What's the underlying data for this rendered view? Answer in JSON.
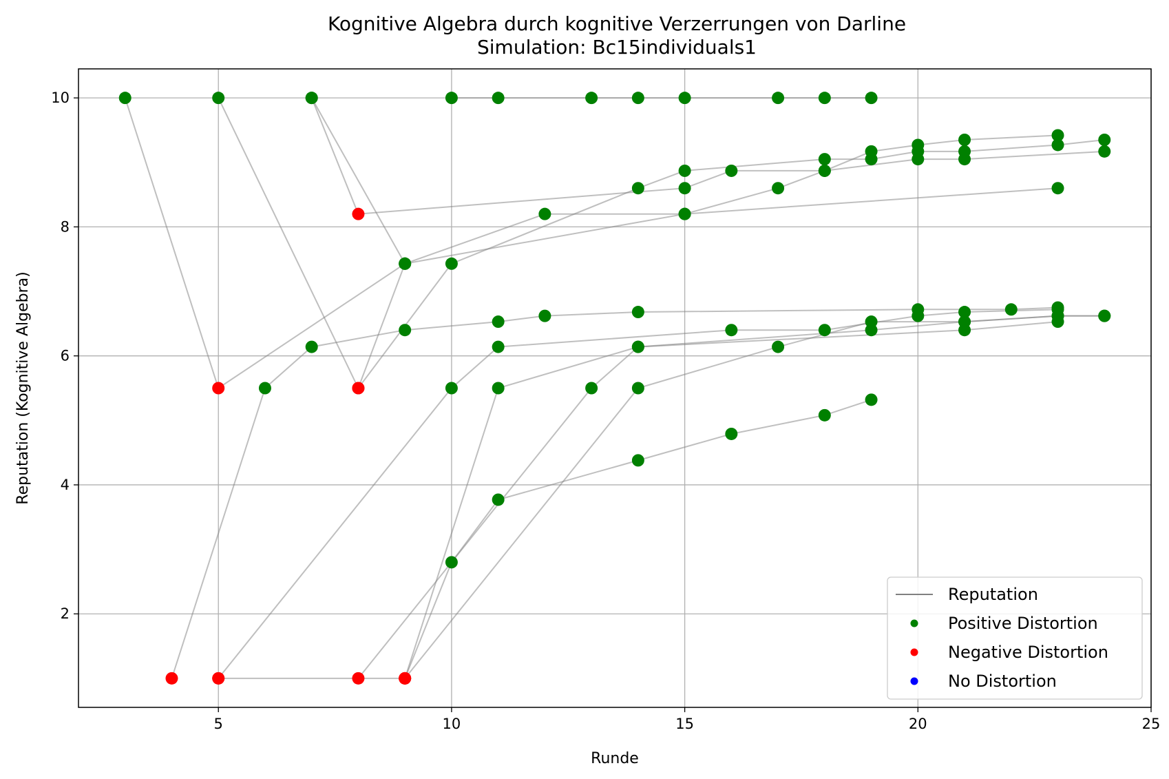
{
  "chart_data": {
    "type": "scatter",
    "title": "Kognitive Algebra durch kognitive Verzerrungen von Darline",
    "subtitle": "Simulation: Bc15individuals1",
    "xlabel": "Runde",
    "ylabel": "Reputation (Kognitive Algebra)",
    "xlim": [
      2,
      25
    ],
    "ylim": [
      0.55,
      10.45
    ],
    "xticks": [
      5,
      10,
      15,
      20,
      25
    ],
    "yticks": [
      2,
      4,
      6,
      8,
      10
    ],
    "grid": true,
    "legend_position": "lower-right",
    "legend": [
      {
        "label": "Reputation",
        "kind": "line",
        "color": "#808080"
      },
      {
        "label": "Positive Distortion",
        "kind": "marker",
        "color": "#008000"
      },
      {
        "label": "Negative Distortion",
        "kind": "marker",
        "color": "#ff0000"
      },
      {
        "label": "No Distortion",
        "kind": "marker",
        "color": "#0000ff"
      }
    ],
    "line_color": "#808080",
    "point_colors": {
      "positive": "#008000",
      "negative": "#ff0000",
      "none": "#0000ff"
    },
    "series": [
      {
        "points": [
          [
            3,
            10,
            "positive"
          ],
          [
            5,
            5.5,
            "negative"
          ],
          [
            9,
            7.43,
            "positive"
          ],
          [
            15,
            8.2,
            "positive"
          ],
          [
            17,
            8.6,
            "positive"
          ],
          [
            18,
            8.87,
            "positive"
          ],
          [
            19,
            9.17,
            "positive"
          ],
          [
            20,
            9.27,
            "positive"
          ],
          [
            21,
            9.35,
            "positive"
          ],
          [
            23,
            9.42,
            "positive"
          ]
        ]
      },
      {
        "points": [
          [
            5,
            10,
            "positive"
          ],
          [
            8,
            5.5,
            "negative"
          ],
          [
            10,
            7.43,
            "positive"
          ],
          [
            14,
            8.6,
            "positive"
          ],
          [
            15,
            8.87,
            "positive"
          ],
          [
            18,
            9.05,
            "positive"
          ],
          [
            19,
            9.05,
            "positive"
          ],
          [
            20,
            9.17,
            "positive"
          ],
          [
            21,
            9.17,
            "positive"
          ],
          [
            23,
            9.27,
            "positive"
          ],
          [
            24,
            9.35,
            "positive"
          ]
        ]
      },
      {
        "points": [
          [
            7,
            10,
            "positive"
          ],
          [
            8,
            8.2,
            "negative"
          ],
          [
            15,
            8.6,
            "positive"
          ],
          [
            16,
            8.87,
            "positive"
          ],
          [
            18,
            8.87,
            "positive"
          ],
          [
            20,
            9.05,
            "positive"
          ],
          [
            21,
            9.05,
            "positive"
          ],
          [
            24,
            9.17,
            "positive"
          ]
        ]
      },
      {
        "points": [
          [
            7,
            10,
            "positive"
          ],
          [
            9,
            7.43,
            "positive"
          ],
          [
            12,
            8.2,
            "positive"
          ],
          [
            15,
            8.2,
            "positive"
          ],
          [
            23,
            8.6,
            "positive"
          ]
        ]
      },
      {
        "points": [
          [
            8,
            5.5,
            "negative"
          ],
          [
            9,
            7.43,
            "positive"
          ]
        ]
      },
      {
        "points": [
          [
            10,
            10,
            "positive"
          ],
          [
            11,
            10,
            "positive"
          ],
          [
            13,
            10,
            "positive"
          ],
          [
            14,
            10,
            "positive"
          ],
          [
            15,
            10,
            "positive"
          ],
          [
            17,
            10,
            "positive"
          ],
          [
            18,
            10,
            "positive"
          ],
          [
            19,
            10,
            "positive"
          ]
        ]
      },
      {
        "points": [
          [
            4,
            1,
            "negative"
          ],
          [
            6,
            5.5,
            "positive"
          ],
          [
            7,
            6.14,
            "positive"
          ],
          [
            9,
            6.4,
            "positive"
          ],
          [
            11,
            6.53,
            "positive"
          ],
          [
            12,
            6.62,
            "positive"
          ],
          [
            14,
            6.68,
            "positive"
          ],
          [
            20,
            6.72,
            "positive"
          ],
          [
            22,
            6.72,
            "positive"
          ],
          [
            23,
            6.75,
            "positive"
          ]
        ]
      },
      {
        "points": [
          [
            5,
            1,
            "negative"
          ],
          [
            9,
            1,
            "negative"
          ]
        ]
      },
      {
        "points": [
          [
            5,
            1,
            "negative"
          ],
          [
            10,
            5.5,
            "positive"
          ],
          [
            11,
            6.14,
            "positive"
          ],
          [
            16,
            6.4,
            "positive"
          ],
          [
            18,
            6.4,
            "positive"
          ],
          [
            20,
            6.62,
            "positive"
          ],
          [
            21,
            6.68,
            "positive"
          ],
          [
            23,
            6.72,
            "positive"
          ]
        ]
      },
      {
        "points": [
          [
            8,
            1,
            "negative"
          ],
          [
            13,
            5.5,
            "positive"
          ],
          [
            14,
            6.14,
            "positive"
          ],
          [
            19,
            6.4,
            "positive"
          ],
          [
            21,
            6.53,
            "positive"
          ],
          [
            23,
            6.62,
            "positive"
          ],
          [
            24,
            6.62,
            "positive"
          ]
        ]
      },
      {
        "points": [
          [
            9,
            1,
            "negative"
          ],
          [
            10,
            2.8,
            "positive"
          ],
          [
            11,
            3.77,
            "positive"
          ],
          [
            14,
            4.38,
            "positive"
          ],
          [
            16,
            4.79,
            "positive"
          ],
          [
            18,
            5.08,
            "positive"
          ],
          [
            19,
            5.32,
            "positive"
          ]
        ]
      },
      {
        "points": [
          [
            9,
            1,
            "negative"
          ],
          [
            11,
            5.5,
            "positive"
          ],
          [
            14,
            6.14,
            "positive"
          ],
          [
            21,
            6.4,
            "positive"
          ],
          [
            23,
            6.53,
            "positive"
          ]
        ]
      },
      {
        "points": [
          [
            9,
            1,
            "negative"
          ],
          [
            14,
            5.5,
            "positive"
          ],
          [
            17,
            6.14,
            "positive"
          ],
          [
            19,
            6.53,
            "positive"
          ],
          [
            21,
            6.53,
            "positive"
          ],
          [
            23,
            6.62,
            "positive"
          ],
          [
            24,
            6.62,
            "positive"
          ]
        ]
      }
    ]
  }
}
